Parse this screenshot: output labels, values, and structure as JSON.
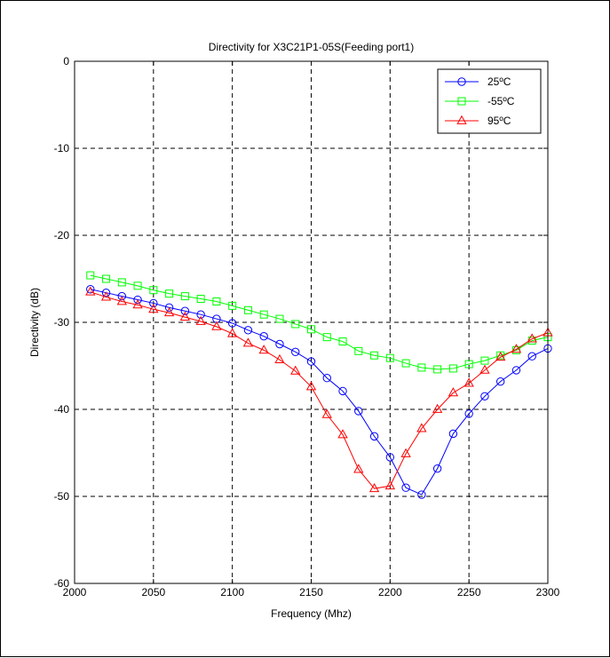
{
  "chart_data": {
    "type": "line",
    "title": "Directivity for X3C21P1-05S(Feeding port1)",
    "xlabel": "Frequency (Mhz)",
    "ylabel": "Directivity (dB)",
    "xlim": [
      2000,
      2300
    ],
    "ylim": [
      -60,
      0
    ],
    "xticks": [
      2000,
      2050,
      2100,
      2150,
      2200,
      2250,
      2300
    ],
    "yticks": [
      0,
      -10,
      -20,
      -30,
      -40,
      -50,
      -60
    ],
    "grid": true,
    "legend_position": "top-right",
    "x": [
      2010,
      2020,
      2030,
      2040,
      2050,
      2060,
      2070,
      2080,
      2090,
      2100,
      2110,
      2120,
      2130,
      2140,
      2150,
      2160,
      2170,
      2180,
      2190,
      2200,
      2210,
      2220,
      2230,
      2240,
      2250,
      2260,
      2270,
      2280,
      2290,
      2300
    ],
    "series": [
      {
        "name": "25ºC",
        "color": "#0000ff",
        "marker": "circle",
        "values": [
          -26.2,
          -26.6,
          -27.0,
          -27.4,
          -27.8,
          -28.3,
          -28.7,
          -29.1,
          -29.6,
          -30.1,
          -30.9,
          -31.6,
          -32.5,
          -33.4,
          -34.5,
          -36.4,
          -37.9,
          -40.2,
          -43.1,
          -45.5,
          -49.0,
          -49.8,
          -46.8,
          -42.8,
          -40.5,
          -38.5,
          -36.8,
          -35.5,
          -33.9,
          -33.0
        ]
      },
      {
        "name": "-55ºC",
        "color": "#00ff00",
        "marker": "square",
        "values": [
          -24.6,
          -25.0,
          -25.4,
          -25.8,
          -26.3,
          -26.7,
          -27.0,
          -27.3,
          -27.6,
          -28.1,
          -28.6,
          -29.1,
          -29.6,
          -30.2,
          -30.8,
          -31.7,
          -32.2,
          -33.3,
          -33.8,
          -34.1,
          -34.7,
          -35.2,
          -35.4,
          -35.3,
          -34.8,
          -34.4,
          -33.8,
          -33.2,
          -32.1,
          -31.7
        ]
      },
      {
        "name": "95ºC",
        "color": "#ff0000",
        "marker": "triangle",
        "values": [
          -26.5,
          -27.1,
          -27.6,
          -28.0,
          -28.5,
          -28.9,
          -29.4,
          -29.9,
          -30.5,
          -31.3,
          -32.4,
          -33.2,
          -34.3,
          -35.6,
          -37.4,
          -40.6,
          -42.9,
          -46.9,
          -49.1,
          -48.8,
          -45.1,
          -42.2,
          -40.0,
          -38.1,
          -37.0,
          -35.5,
          -34.0,
          -33.1,
          -31.9,
          -31.2
        ]
      }
    ]
  }
}
